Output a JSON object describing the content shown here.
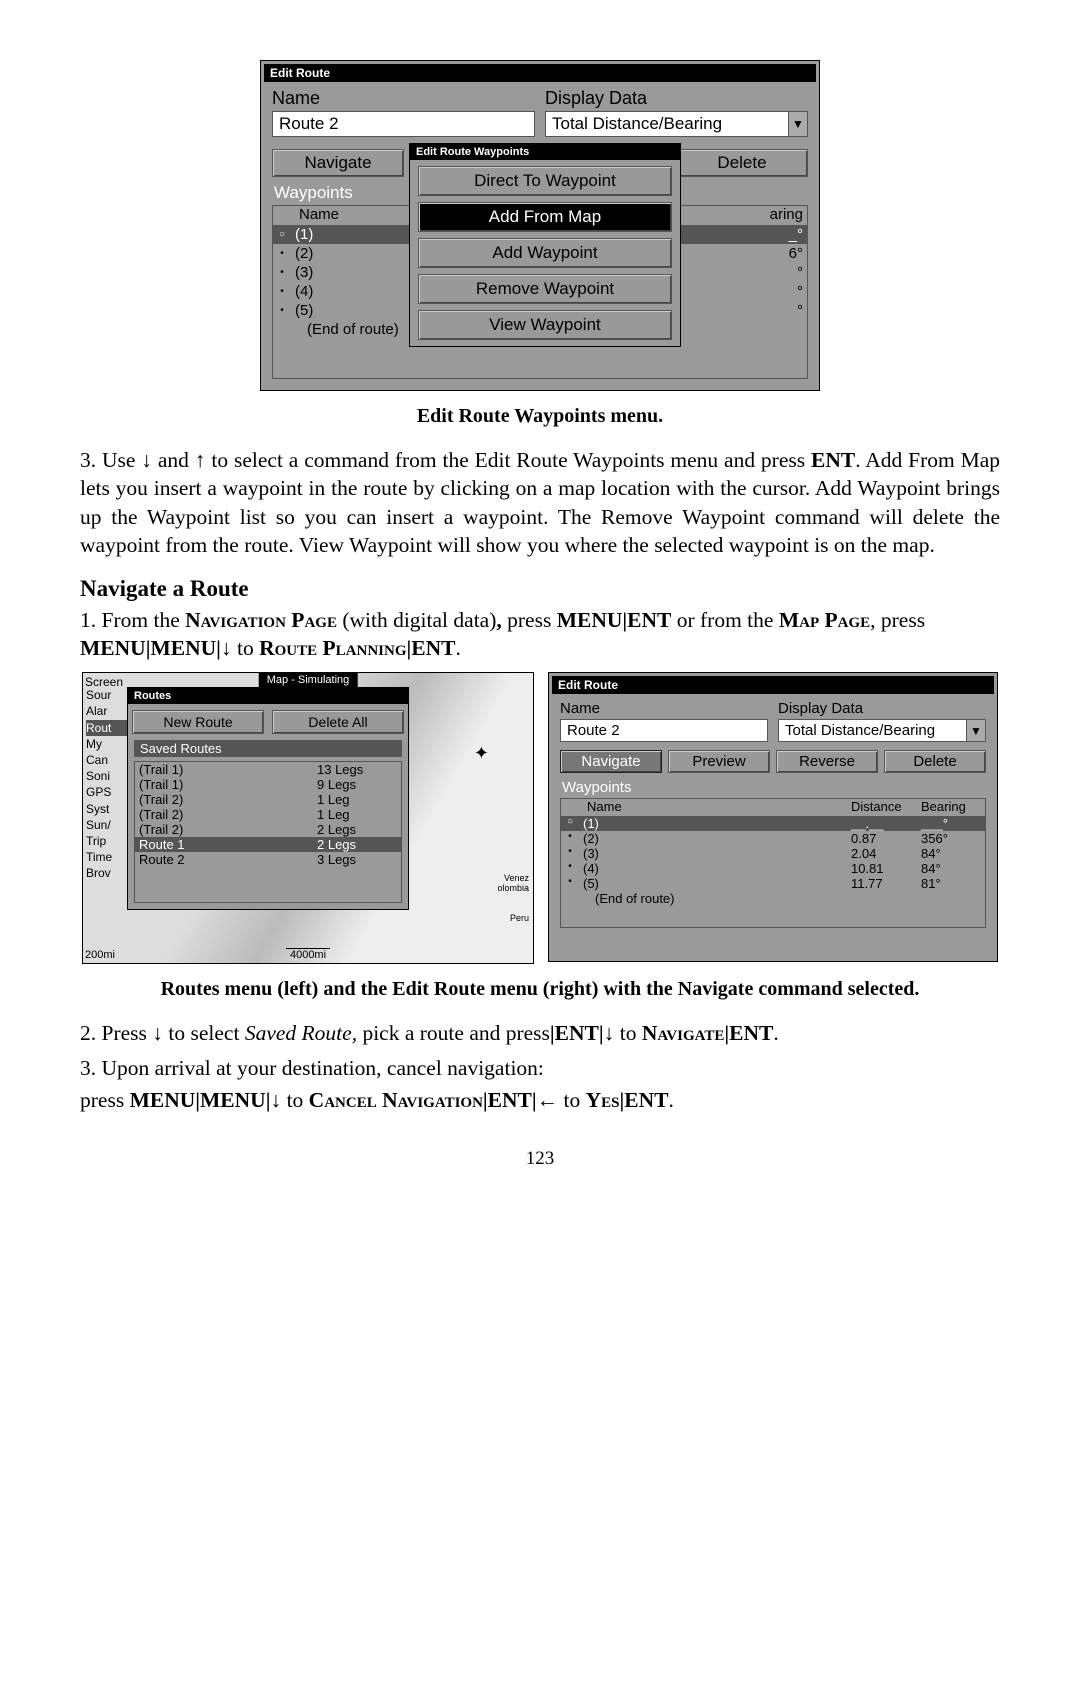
{
  "ss1": {
    "title": "Edit Route",
    "name_label": "Name",
    "name_value": "Route 2",
    "display_label": "Display Data",
    "display_value": "Total Distance/Bearing",
    "btn_navigate": "Navigate",
    "btn_delete": "Delete",
    "waypoints_label": "Waypoints",
    "col_name": "Name",
    "col_right": "aring",
    "rows": [
      {
        "n": "(1)",
        "dist": "",
        "brg": "_°",
        "sel": true
      },
      {
        "n": "(2)",
        "dist": "",
        "brg": "6°"
      },
      {
        "n": "(3)",
        "dist": "",
        "brg": "°"
      },
      {
        "n": "(4)",
        "dist": "",
        "brg": "°"
      },
      {
        "n": "(5)",
        "dist": "",
        "brg": "°"
      }
    ],
    "end": "(End of route)",
    "popup": {
      "title": "Edit Route Waypoints",
      "items": [
        "Direct To Waypoint",
        "Add From Map",
        "Add Waypoint",
        "Remove Waypoint",
        "View Waypoint"
      ],
      "selected_index": 1
    }
  },
  "caption1": "Edit Route Waypoints menu.",
  "para1_a": "3. Use ",
  "para1_b": " and ",
  "para1_c": " to select a command from the Edit Route Waypoints menu and press ",
  "para1_ent": "ENT",
  "para1_d": ". Add From Map lets you insert a waypoint in the route by clicking on a map location with the cursor. Add Waypoint brings up the Waypoint list so you can insert a waypoint. The Remove Waypoint command will delete the waypoint from the route. View Waypoint will show you where the selected waypoint is on the map.",
  "h2": "Navigate a Route",
  "para2_a": "1. From the ",
  "para2_nav": "Navigation Page",
  "para2_b": " (with digital data)",
  "para2_comma": ",",
  "para2_c": " press ",
  "para2_menu": "MENU",
  "para2_ent": "ENT",
  "para2_d": " or from the ",
  "para2_map": "Map Page",
  "para2_e": ", press ",
  "para2_f": " to ",
  "para2_route": "Route Planning",
  "ss2": {
    "screen_label": "Screen",
    "map_title": "Map - Simulating",
    "left_items": [
      "Sour",
      "Alar",
      "Rout",
      "My ",
      "Can",
      "Soni",
      "GPS",
      "Syst",
      "Sun/",
      "Trip",
      "Time",
      "Brov"
    ],
    "routes_title": "Routes",
    "btn_new": "New Route",
    "btn_delall": "Delete All",
    "saved_hdr": "Saved Routes",
    "saved": [
      {
        "n": "(Trail 1)",
        "l": "13 Legs"
      },
      {
        "n": "(Trail 1)",
        "l": "9 Legs"
      },
      {
        "n": "(Trail 2)",
        "l": "1 Leg"
      },
      {
        "n": "(Trail 2)",
        "l": "1 Leg"
      },
      {
        "n": "(Trail 2)",
        "l": "2 Legs"
      },
      {
        "n": "Route 1",
        "l": "2 Legs",
        "sel": true
      },
      {
        "n": "Route 2",
        "l": "3 Legs"
      }
    ],
    "scale1": "200mi",
    "scale2": "4000mi",
    "map_lbl1": "Venez",
    "map_lbl2": "olombia",
    "map_lbl3": "Peru",
    "marker": "✦"
  },
  "ss3": {
    "title": "Edit Route",
    "name_label": "Name",
    "name_value": "Route 2",
    "display_label": "Display Data",
    "display_value": "Total Distance/Bearing",
    "btns": [
      "Navigate",
      "Preview",
      "Reverse",
      "Delete"
    ],
    "sel_btn": 0,
    "waypoints_label": "Waypoints",
    "hdr": {
      "name": "Name",
      "dist": "Distance",
      "brg": "Bearing"
    },
    "rows": [
      {
        "n": "(1)",
        "d": "__.__",
        "b": "___°",
        "sel": true
      },
      {
        "n": "(2)",
        "d": "0.87",
        "b": "356°"
      },
      {
        "n": "(3)",
        "d": "2.04",
        "b": "84°"
      },
      {
        "n": "(4)",
        "d": "10.81",
        "b": "84°"
      },
      {
        "n": "(5)",
        "d": "11.77",
        "b": "81°"
      }
    ],
    "end": "(End of route)"
  },
  "caption2": "Routes menu (left) and the Edit Route menu (right) with the Navigate command selected.",
  "para3_a": "2. Press ",
  "para3_b": " to select ",
  "para3_saved": "Saved Route,",
  "para3_c": " pick a route and press",
  "para3_d": " to ",
  "para3_nav": "Navigate",
  "para4_a": "3. Upon arrival at your destination, cancel navigation:",
  "para4_b": "press ",
  "para4_cancel": "Cancel Navigation",
  "para4_yes": "Yes",
  "page_num": "123",
  "glyph_down": "↓",
  "glyph_up": "↑",
  "glyph_left": "←",
  "glyph_pipe": "|"
}
